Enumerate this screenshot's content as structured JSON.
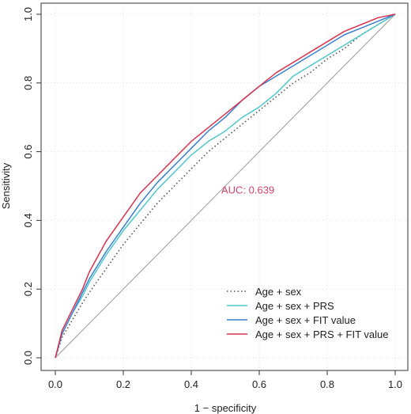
{
  "chart_data": {
    "type": "line",
    "title": "",
    "xlabel": "1 − specificity",
    "ylabel": "Sensitivity",
    "xlim": [
      0,
      1
    ],
    "ylim": [
      0,
      1
    ],
    "x_ticks": [
      "0.0",
      "0.2",
      "0.4",
      "0.6",
      "0.8",
      "1.0"
    ],
    "y_ticks": [
      "0.0",
      "0.2",
      "0.4",
      "0.6",
      "0.8",
      "1.0"
    ],
    "grid": true,
    "legend_position": "bottom-right",
    "annotation": {
      "text": "AUC: 0.639",
      "x": 0.5,
      "y": 0.49,
      "color": "#d0446a"
    },
    "reference_line": {
      "x": [
        0,
        1
      ],
      "y": [
        0,
        1
      ],
      "color": "#999999"
    },
    "series": [
      {
        "name": "Age + sex",
        "color": "#555555",
        "style": "dotted",
        "x": [
          0,
          0.02,
          0.05,
          0.08,
          0.1,
          0.15,
          0.2,
          0.25,
          0.3,
          0.35,
          0.4,
          0.45,
          0.5,
          0.55,
          0.6,
          0.65,
          0.7,
          0.75,
          0.8,
          0.85,
          0.9,
          0.95,
          1.0
        ],
        "y": [
          0,
          0.06,
          0.11,
          0.16,
          0.19,
          0.26,
          0.33,
          0.39,
          0.45,
          0.5,
          0.55,
          0.6,
          0.64,
          0.68,
          0.72,
          0.76,
          0.8,
          0.83,
          0.87,
          0.9,
          0.94,
          0.97,
          1.0
        ]
      },
      {
        "name": "Age + sex + PRS",
        "color": "#4fc7c9",
        "style": "solid",
        "x": [
          0,
          0.02,
          0.05,
          0.08,
          0.1,
          0.15,
          0.2,
          0.25,
          0.3,
          0.35,
          0.4,
          0.45,
          0.5,
          0.55,
          0.6,
          0.65,
          0.7,
          0.75,
          0.8,
          0.85,
          0.9,
          0.95,
          1.0
        ],
        "y": [
          0,
          0.07,
          0.13,
          0.18,
          0.22,
          0.3,
          0.37,
          0.43,
          0.49,
          0.54,
          0.59,
          0.63,
          0.66,
          0.7,
          0.73,
          0.77,
          0.82,
          0.85,
          0.88,
          0.91,
          0.94,
          0.97,
          1.0
        ]
      },
      {
        "name": "Age + sex + FIT value",
        "color": "#3a7fcf",
        "style": "solid",
        "x": [
          0,
          0.02,
          0.05,
          0.08,
          0.1,
          0.15,
          0.2,
          0.25,
          0.3,
          0.35,
          0.4,
          0.45,
          0.5,
          0.55,
          0.6,
          0.65,
          0.7,
          0.75,
          0.8,
          0.85,
          0.9,
          0.95,
          1.0
        ],
        "y": [
          0,
          0.07,
          0.13,
          0.19,
          0.23,
          0.31,
          0.38,
          0.45,
          0.51,
          0.56,
          0.61,
          0.66,
          0.7,
          0.75,
          0.79,
          0.82,
          0.85,
          0.88,
          0.91,
          0.94,
          0.96,
          0.98,
          1.0
        ]
      },
      {
        "name": "Age + sex + PRS + FIT value",
        "color": "#d8344f",
        "style": "solid",
        "x": [
          0,
          0.02,
          0.05,
          0.08,
          0.1,
          0.15,
          0.2,
          0.25,
          0.3,
          0.35,
          0.4,
          0.45,
          0.5,
          0.55,
          0.6,
          0.65,
          0.7,
          0.75,
          0.8,
          0.85,
          0.9,
          0.95,
          1.0
        ],
        "y": [
          0,
          0.08,
          0.14,
          0.2,
          0.25,
          0.34,
          0.41,
          0.48,
          0.53,
          0.58,
          0.63,
          0.67,
          0.71,
          0.75,
          0.79,
          0.83,
          0.86,
          0.89,
          0.92,
          0.95,
          0.97,
          0.99,
          1.0
        ]
      }
    ]
  }
}
